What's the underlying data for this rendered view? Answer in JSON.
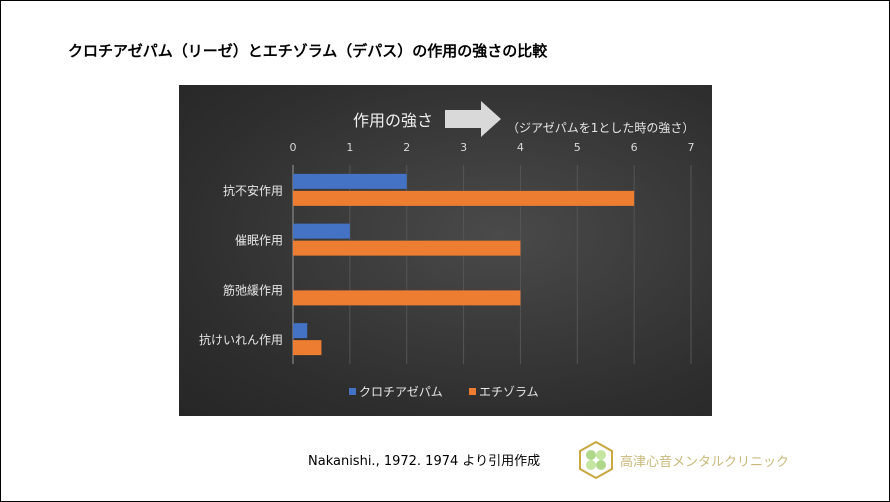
{
  "title": "クロチアゼパム（リーゼ）とエチゾラム（デパス）の作用の強さの比較",
  "chart_data": {
    "type": "bar",
    "orientation": "horizontal",
    "title": "",
    "header_label": "作用の強さ",
    "note": "（ジアゼパムを1とした時の強さ）",
    "categories": [
      "抗不安作用",
      "催眠作用",
      "筋弛緩作用",
      "抗けいれん作用"
    ],
    "series": [
      {
        "name": "クロチアゼパム",
        "values": [
          2,
          1,
          0,
          0.25
        ],
        "color": "#4472c4"
      },
      {
        "name": "エチゾラム",
        "values": [
          6,
          4,
          4,
          0.5
        ],
        "color": "#ed7d31"
      }
    ],
    "xlim": [
      0,
      7
    ],
    "xticks": [
      "0",
      "1",
      "2",
      "3",
      "4",
      "5",
      "6",
      "7"
    ],
    "grid": true,
    "legend": "bottom",
    "background": "#333333"
  },
  "source": "Nakanishi., 1972. 1974 より引用作成",
  "logo": {
    "text": "高津心音メンタルクリニック",
    "color": "#c8b97a"
  }
}
